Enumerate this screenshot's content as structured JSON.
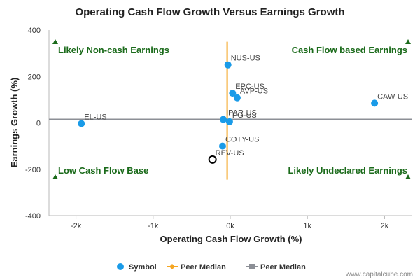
{
  "chart_data": {
    "type": "scatter",
    "title": "Operating Cash Flow Growth Versus Earnings Growth",
    "xlabel": "Operating Cash Flow Growth (%)",
    "ylabel": "Earnings Growth (%)",
    "xlim": [
      -2350,
      2350
    ],
    "ylim": [
      -400,
      400
    ],
    "x_ticks": [
      {
        "value": -2000,
        "label": "-2k"
      },
      {
        "value": -1000,
        "label": "-1k"
      },
      {
        "value": 0,
        "label": "0k"
      },
      {
        "value": 1000,
        "label": "1k"
      },
      {
        "value": 2000,
        "label": "2k"
      }
    ],
    "y_ticks": [
      {
        "value": 400,
        "label": "400"
      },
      {
        "value": 200,
        "label": "200"
      },
      {
        "value": 0,
        "label": "0"
      },
      {
        "value": -200,
        "label": "-200"
      },
      {
        "value": -400,
        "label": "-400"
      }
    ],
    "grid": false,
    "colors": {
      "symbol": "#1a9be8",
      "peer_median_x": "#f5a623",
      "peer_median_y": "#8c8f96",
      "quadrant_label": "#1a6a1a",
      "highlight_stroke": "#000000"
    },
    "points": [
      {
        "label": "NUS-US",
        "x": -30,
        "y": 250,
        "highlight": false
      },
      {
        "label": "EPC-US",
        "x": 30,
        "y": 128,
        "highlight": false
      },
      {
        "label": "AVP-US",
        "x": 90,
        "y": 108,
        "highlight": false
      },
      {
        "label": "CAW-US",
        "x": 1870,
        "y": 85,
        "highlight": false
      },
      {
        "label": "EL-US",
        "x": -1930,
        "y": -3,
        "highlight": false
      },
      {
        "label": "IPAR-US",
        "x": -90,
        "y": 15,
        "highlight": false
      },
      {
        "label": "PG-US",
        "x": -10,
        "y": 5,
        "highlight": false
      },
      {
        "label": "COTY-US",
        "x": -100,
        "y": -100,
        "highlight": false
      },
      {
        "label": "REV-US",
        "x": -230,
        "y": -158,
        "highlight": true
      }
    ],
    "peer_median_x": -40,
    "peer_median_x_range": [
      -245,
      350
    ],
    "peer_median_y": 15,
    "quadrant_labels": {
      "top_left": "Likely Non-cash Earnings",
      "top_right": "Cash Flow based Earnings",
      "bottom_left": "Low Cash Flow Base",
      "bottom_right": "Likely Undeclared Earnings"
    },
    "legend": [
      {
        "label": "Symbol",
        "marker": "circle"
      },
      {
        "label": "Peer Median",
        "marker": "diamond-line"
      },
      {
        "label": "Peer Median",
        "marker": "square-line"
      }
    ],
    "legend_position": "bottom-center",
    "credit": "www.capitalcube.com"
  }
}
